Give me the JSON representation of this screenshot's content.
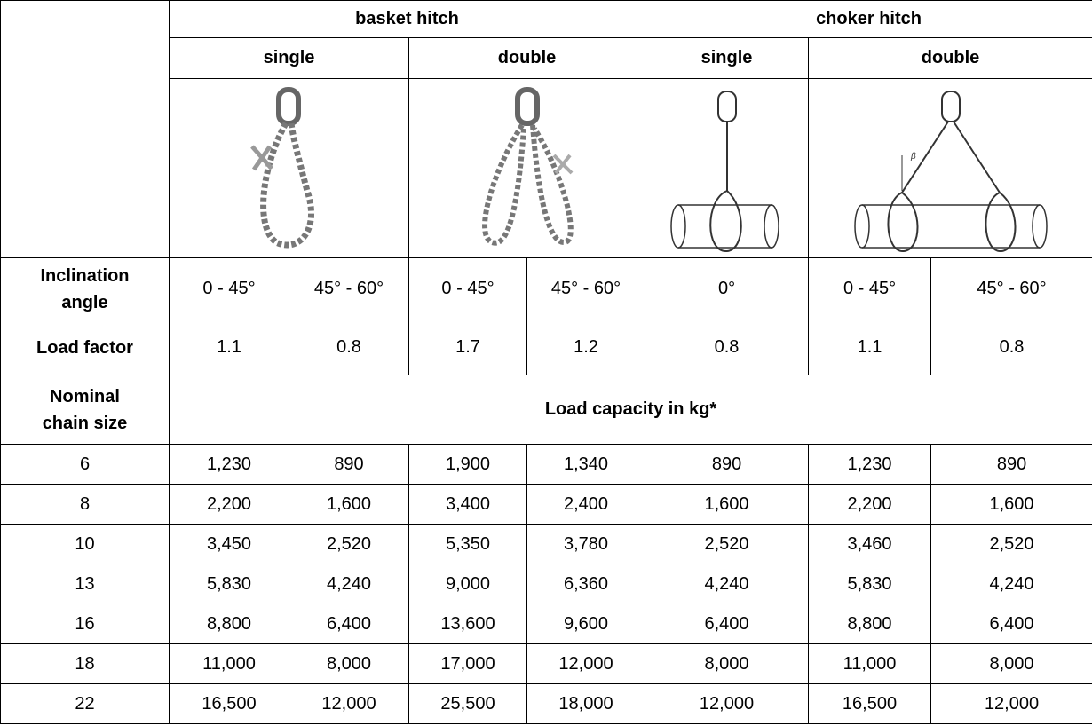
{
  "header": {
    "groups": [
      "basket hitch",
      "choker hitch"
    ],
    "subgroups": [
      "single",
      "double",
      "single",
      "double"
    ]
  },
  "inclination": {
    "label": "Inclination angle",
    "values": [
      "0 - 45°",
      "45° - 60°",
      "0 - 45°",
      "45° - 60°",
      "0°",
      "0 - 45°",
      "45° - 60°"
    ]
  },
  "load_factor": {
    "label": "Load factor",
    "values": [
      "1.1",
      "0.8",
      "1.7",
      "1.2",
      "0.8",
      "1.1",
      "0.8"
    ]
  },
  "capacity": {
    "label": "Nominal chain size",
    "caption": "Load capacity in kg*",
    "rows": [
      [
        "6",
        "1,230",
        "890",
        "1,900",
        "1,340",
        "890",
        "1,230",
        "890"
      ],
      [
        "8",
        "2,200",
        "1,600",
        "3,400",
        "2,400",
        "1,600",
        "2,200",
        "1,600"
      ],
      [
        "10",
        "3,450",
        "2,520",
        "5,350",
        "3,780",
        "2,520",
        "3,460",
        "2,520"
      ],
      [
        "13",
        "5,830",
        "4,240",
        "9,000",
        "6,360",
        "4,240",
        "5,830",
        "4,240"
      ],
      [
        "16",
        "8,800",
        "6,400",
        "13,600",
        "9,600",
        "6,400",
        "8,800",
        "6,400"
      ],
      [
        "18",
        "11,000",
        "8,000",
        "17,000",
        "12,000",
        "8,000",
        "11,000",
        "8,000"
      ],
      [
        "22",
        "16,500",
        "12,000",
        "25,500",
        "18,000",
        "12,000",
        "16,500",
        "12,000"
      ]
    ]
  }
}
